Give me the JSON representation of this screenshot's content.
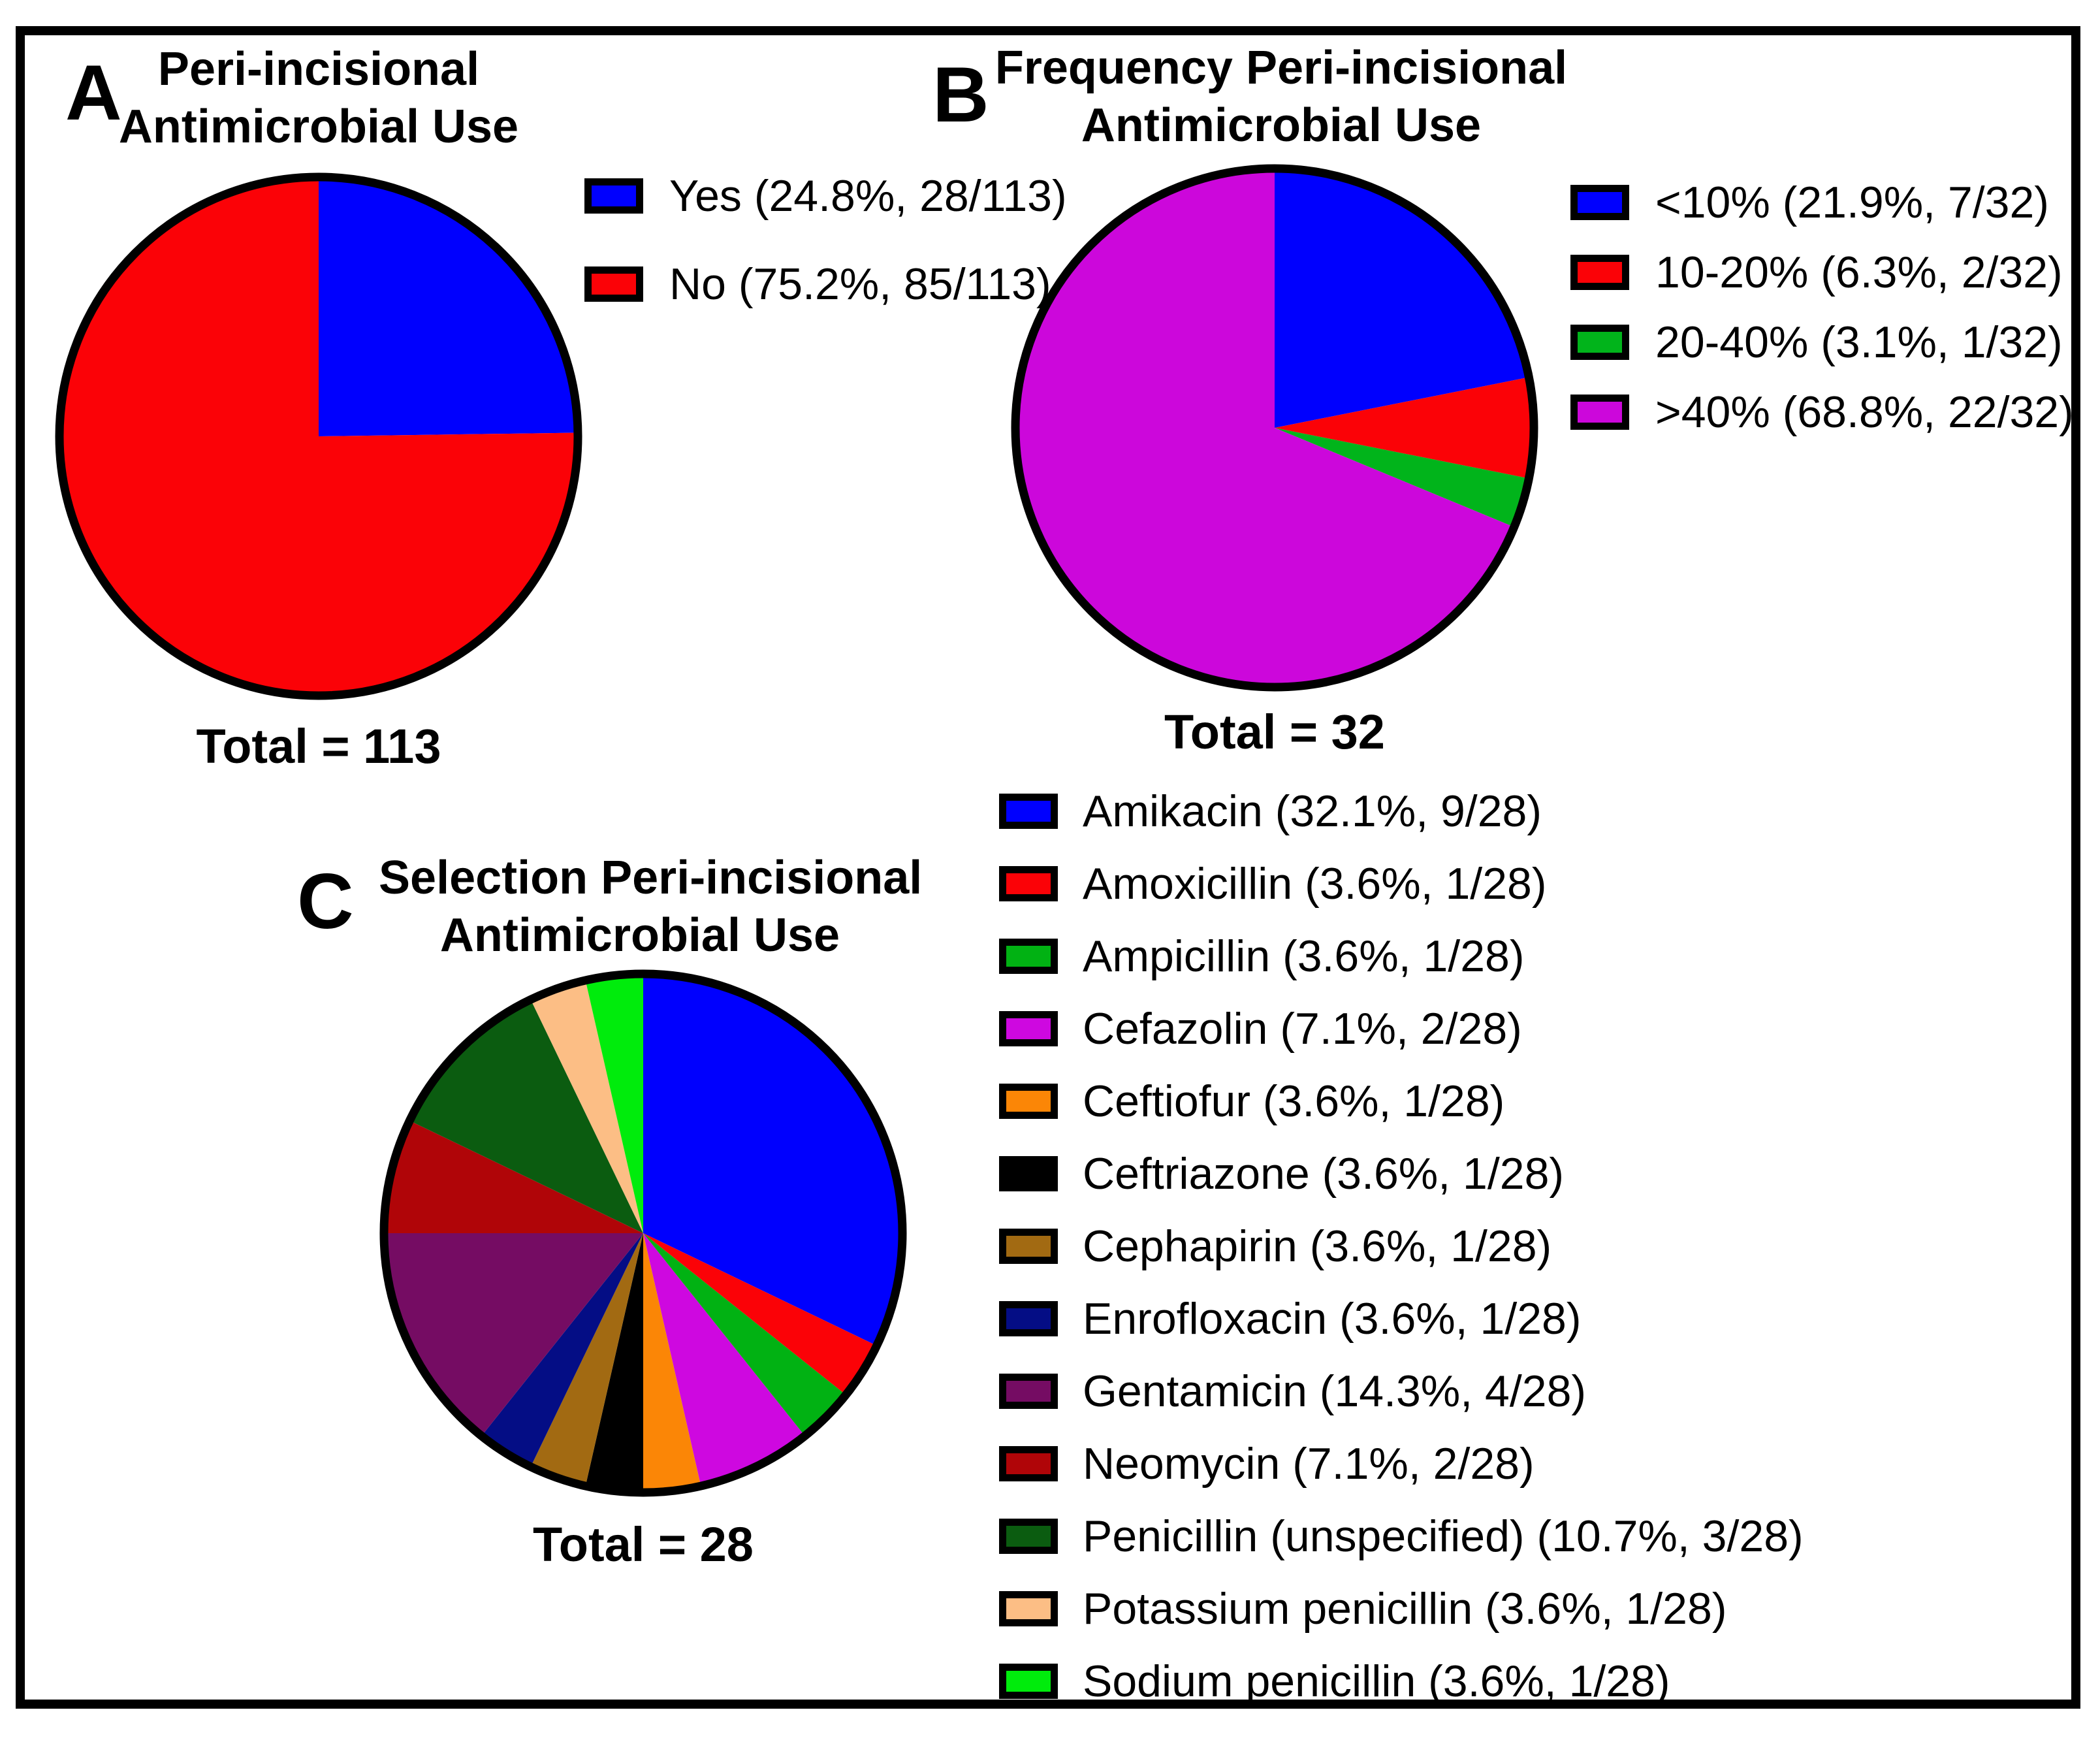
{
  "panels": [
    {
      "label": "A",
      "title_line1": "Peri-incisional",
      "title_line2": "Antimicrobial Use",
      "total_label": "Total = 113"
    },
    {
      "label": "B",
      "title_line1": "Frequency Peri-incisional",
      "title_line2": "Antimicrobial Use",
      "total_label": "Total = 32"
    },
    {
      "label": "C",
      "title_line1": "Selection Peri-incisional",
      "title_line2": "Antimicrobial Use",
      "total_label": "Total = 28"
    }
  ],
  "chart_data": [
    {
      "type": "pie",
      "panel": "A",
      "title": "Peri-incisional Antimicrobial Use",
      "total": 113,
      "total_label": "Total = 113",
      "start_angle_deg": 0,
      "direction": "clockwise",
      "legend_position": "right",
      "slices": [
        {
          "category": "Yes",
          "label": "Yes (24.8%, 28/113)",
          "value": 28,
          "percent": 24.8,
          "color": "#0000FE"
        },
        {
          "category": "No",
          "label": "No (75.2%, 85/113)",
          "value": 85,
          "percent": 75.2,
          "color": "#FB0207"
        }
      ]
    },
    {
      "type": "pie",
      "panel": "B",
      "title": "Frequency Peri-incisional Antimicrobial Use",
      "total": 32,
      "total_label": "Total = 32",
      "start_angle_deg": 0,
      "direction": "clockwise",
      "legend_position": "right",
      "slices": [
        {
          "category": "<10%",
          "label": "<10% (21.9%, 7/32)",
          "value": 7,
          "percent": 21.9,
          "color": "#0000FE"
        },
        {
          "category": "10-20%",
          "label": "10-20% (6.3%, 2/32)",
          "value": 2,
          "percent": 6.3,
          "color": "#FB0207"
        },
        {
          "category": "20-40%",
          "label": "20-40% (3.1%, 1/32)",
          "value": 1,
          "percent": 3.1,
          "color": "#01B41B"
        },
        {
          "category": ">40%",
          "label": ">40% (68.8%, 22/32)",
          "value": 22,
          "percent": 68.8,
          "color": "#CC07DB"
        }
      ]
    },
    {
      "type": "pie",
      "panel": "C",
      "title": "Selection Peri-incisional Antimicrobial Use",
      "total": 28,
      "total_label": "Total = 28",
      "start_angle_deg": 0,
      "direction": "clockwise",
      "legend_position": "right",
      "slices": [
        {
          "category": "Amikacin",
          "label": "Amikacin (32.1%, 9/28)",
          "value": 9,
          "percent": 32.1,
          "color": "#0000FE"
        },
        {
          "category": "Amoxicillin",
          "label": "Amoxicillin (3.6%, 1/28)",
          "value": 1,
          "percent": 3.6,
          "color": "#FB0207"
        },
        {
          "category": "Ampicillin",
          "label": "Ampicillin (3.6%, 1/28)",
          "value": 1,
          "percent": 3.6,
          "color": "#01B213"
        },
        {
          "category": "Cefazolin",
          "label": "Cefazolin (7.1%, 2/28)",
          "value": 2,
          "percent": 7.1,
          "color": "#CE08E0"
        },
        {
          "category": "Ceftiofur",
          "label": "Ceftiofur (3.6%, 1/28)",
          "value": 1,
          "percent": 3.6,
          "color": "#FB8606"
        },
        {
          "category": "Ceftriazone",
          "label": "Ceftriazone (3.6%, 1/28)",
          "value": 1,
          "percent": 3.6,
          "color": "#000000"
        },
        {
          "category": "Cephapirin",
          "label": "Cephapirin (3.6%, 1/28)",
          "value": 1,
          "percent": 3.6,
          "color": "#A26A12"
        },
        {
          "category": "Enrofloxacin",
          "label": "Enrofloxacin (3.6%, 1/28)",
          "value": 1,
          "percent": 3.6,
          "color": "#040D85"
        },
        {
          "category": "Gentamicin",
          "label": "Gentamicin (14.3%, 4/28)",
          "value": 4,
          "percent": 14.3,
          "color": "#750C63"
        },
        {
          "category": "Neomycin",
          "label": "Neomycin (7.1%, 2/28)",
          "value": 2,
          "percent": 7.1,
          "color": "#B00508"
        },
        {
          "category": "Penicillin (unspecified)",
          "label": "Penicillin (unspecified) (10.7%, 3/28)",
          "value": 3,
          "percent": 10.7,
          "color": "#0B5C10"
        },
        {
          "category": "Potassium penicillin",
          "label": "Potassium penicillin (3.6%, 1/28)",
          "value": 1,
          "percent": 3.6,
          "color": "#FCBE85"
        },
        {
          "category": "Sodium penicillin",
          "label": "Sodium penicillin (3.6%, 1/28)",
          "value": 1,
          "percent": 3.6,
          "color": "#00EC0C"
        }
      ]
    }
  ],
  "colors": {
    "background": "#FFFFFF",
    "border": "#000000",
    "text": "#000000"
  }
}
